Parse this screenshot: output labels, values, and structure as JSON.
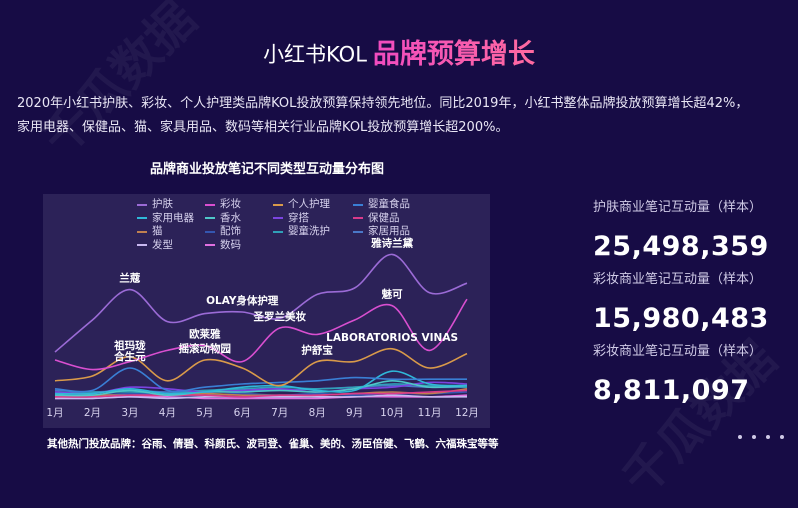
{
  "header": {
    "prefix": "小红书KOL",
    "title": "品牌预算增长"
  },
  "intro": {
    "line1": "2020年小红书护肤、彩妆、个人护理类品牌KOL投放预算保持领先地位。同比2019年，小红书整体品牌投放预算增长超42%，",
    "line2": "家用电器、保健品、猫、家具用品、数码等相关行业品牌KOL投放预算增长超200%。"
  },
  "footer": {
    "text": "其他热门投放品牌：谷雨、倩碧、科颜氏、波司登、雀巢、美的、汤臣倍健、飞鹤、六福珠宝等等"
  },
  "stats": [
    {
      "label": "护肤商业笔记互动量（样本）",
      "value": "25,498,359"
    },
    {
      "label": "彩妆商业笔记互动量（样本）",
      "value": "15,980,483"
    },
    {
      "label": "彩妆商业笔记互动量（样本）",
      "value": "8,811,097"
    }
  ],
  "pagination": {
    "dots": 4
  },
  "watermark": {
    "text": "千瓜数据"
  },
  "chart_data": {
    "type": "line",
    "title": "品牌商业投放笔记不同类型互动量分布图",
    "xlabel": "",
    "ylabel": "",
    "grid": false,
    "legend_position": "top",
    "categories": [
      "1月",
      "2月",
      "3月",
      "4月",
      "5月",
      "6月",
      "7月",
      "8月",
      "9月",
      "10月",
      "11月",
      "12月"
    ],
    "ylim": [
      0,
      100
    ],
    "series": [
      {
        "name": "护肤",
        "color": "#9b6bd6",
        "values": [
          30,
          50,
          69,
          49,
          54,
          55,
          51,
          66,
          70,
          91,
          67,
          73
        ]
      },
      {
        "name": "彩妆",
        "color": "#d94fd0",
        "values": [
          25,
          19,
          24,
          31,
          34,
          24,
          45,
          41,
          50,
          59,
          31,
          63
        ]
      },
      {
        "name": "个人护理",
        "color": "#d99a4a",
        "values": [
          12,
          15,
          27,
          12,
          25,
          20,
          9,
          24,
          24,
          32,
          20,
          29
        ]
      },
      {
        "name": "婴童食品",
        "color": "#3a7fd5",
        "values": [
          7,
          6,
          20,
          6,
          8,
          10,
          11,
          12,
          14,
          13,
          13,
          13
        ]
      },
      {
        "name": "家用电器",
        "color": "#2fb8d8",
        "values": [
          4,
          4,
          7,
          4,
          5,
          8,
          9,
          6,
          6,
          18,
          10,
          9
        ]
      },
      {
        "name": "香水",
        "color": "#4fc6c8",
        "values": [
          3,
          3,
          6,
          3,
          5,
          5,
          6,
          5,
          7,
          12,
          8,
          9
        ]
      },
      {
        "name": "穿搭",
        "color": "#7b44e0",
        "values": [
          5,
          4,
          8,
          7,
          5,
          6,
          7,
          5,
          7,
          8,
          11,
          10
        ]
      },
      {
        "name": "保健品",
        "color": "#d93a8a",
        "values": [
          2,
          2,
          3,
          3,
          3,
          2,
          3,
          3,
          4,
          4,
          5,
          6
        ]
      },
      {
        "name": "猫",
        "color": "#c08050",
        "values": [
          2,
          3,
          3,
          3,
          4,
          3,
          3,
          3,
          4,
          5,
          4,
          7
        ]
      },
      {
        "name": "配饰",
        "color": "#3456b0",
        "values": [
          3,
          3,
          4,
          3,
          3,
          4,
          3,
          4,
          3,
          4,
          4,
          5
        ]
      },
      {
        "name": "婴童洗护",
        "color": "#30a0b8",
        "values": [
          4,
          5,
          5,
          4,
          6,
          7,
          8,
          7,
          8,
          10,
          9,
          8
        ]
      },
      {
        "name": "家居用品",
        "color": "#4a78c8",
        "values": [
          6,
          5,
          6,
          5,
          6,
          6,
          6,
          7,
          8,
          9,
          8,
          8
        ]
      },
      {
        "name": "发型",
        "color": "#c8b8f0",
        "values": [
          1,
          1,
          2,
          1,
          2,
          2,
          2,
          2,
          2,
          3,
          2,
          2
        ]
      },
      {
        "name": "数码",
        "color": "#e070e0",
        "values": [
          1,
          1,
          2,
          2,
          1,
          1,
          1,
          1,
          2,
          2,
          2,
          3
        ]
      }
    ],
    "annotations": [
      {
        "text": "兰蔻",
        "month": "3月",
        "series": "护肤"
      },
      {
        "text": "雅诗兰黛",
        "month": "10月",
        "series": "护肤"
      },
      {
        "text": "OLAY身体护理",
        "month": "6月",
        "series": "护肤"
      },
      {
        "text": "欧莱雅",
        "month": "5月",
        "series": "彩妆"
      },
      {
        "text": "圣罗兰美妆",
        "month": "7月",
        "series": "彩妆"
      },
      {
        "text": "魅可",
        "month": "10月",
        "series": "彩妆"
      },
      {
        "text": "祖玛珑",
        "month": "3月",
        "series": "个人护理"
      },
      {
        "text": "摇滚动物园",
        "month": "5月",
        "series": "个人护理"
      },
      {
        "text": "护舒宝",
        "month": "8月",
        "series": "个人护理"
      },
      {
        "text": "LABORATORIOS VINAS",
        "month": "10月",
        "series": "个人护理"
      },
      {
        "text": "合生元",
        "month": "3月",
        "series": "婴童食品"
      }
    ]
  }
}
